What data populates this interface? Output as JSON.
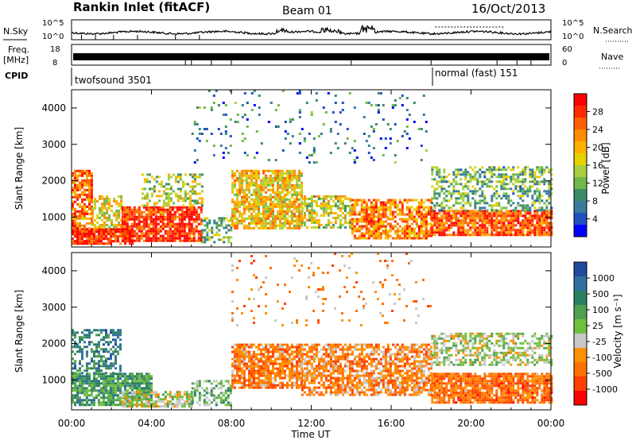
{
  "header": {
    "station": "Rankin Inlet (fitACF)",
    "beam": "Beam 01",
    "date": "16/Oct/2013"
  },
  "noise_panel": {
    "left_label": "N.Sky",
    "right_label": "N.Search",
    "left_ticks": [
      "10^5",
      "10^0"
    ],
    "right_ticks": [
      "10^5",
      "10^0"
    ]
  },
  "freq_panel": {
    "label_line1": "Freq.",
    "label_line2": "[MHz]",
    "left_ticks": [
      "18",
      "8"
    ],
    "right_ticks": [
      "60",
      "0"
    ],
    "right_label": "Nave"
  },
  "cpid": {
    "label": "CPID",
    "segments": [
      {
        "name": "twofsound 3501",
        "start_hour": 0,
        "end_hour": 18
      },
      {
        "name": "normal (fast) 151",
        "start_hour": 18,
        "end_hour": 24
      }
    ]
  },
  "x_axis": {
    "label": "Time UT",
    "tick_labels": [
      "00:00",
      "04:00",
      "08:00",
      "12:00",
      "16:00",
      "20:00",
      "00:00"
    ],
    "ticks_hours": [
      0,
      4,
      8,
      12,
      16,
      20,
      24
    ]
  },
  "chart_data": [
    {
      "type": "heatmap",
      "panel": "power",
      "ylabel": "Slant Range [km]",
      "y_ticks": [
        1000,
        2000,
        3000,
        4000
      ],
      "ylim": [
        180,
        4500
      ],
      "xlim": [
        0,
        24
      ],
      "colorbar_label": "Power [dB]",
      "colorbar_ticks": [
        "28",
        "24",
        "20",
        "16",
        "12",
        "8",
        "4"
      ],
      "colorbar_colors": [
        "#ff0000",
        "#ff2a00",
        "#ff6000",
        "#ff8c00",
        "#ffb000",
        "#e6d000",
        "#a8d040",
        "#6fb84a",
        "#3c8c6a",
        "#3a7aa0",
        "#2050c0",
        "#0000ff"
      ],
      "bands": [
        {
          "t0": 0.0,
          "t1": 3.0,
          "r0": 250,
          "r1": 700,
          "level": 0.95,
          "density": 0.9
        },
        {
          "t0": 0.0,
          "t1": 1.0,
          "r0": 700,
          "r1": 2300,
          "level": 0.8,
          "density": 0.75
        },
        {
          "t0": 1.0,
          "t1": 2.5,
          "r0": 700,
          "r1": 1600,
          "level": 0.55,
          "density": 0.6
        },
        {
          "t0": 2.5,
          "t1": 6.5,
          "r0": 350,
          "r1": 1300,
          "level": 0.9,
          "density": 0.85
        },
        {
          "t0": 3.5,
          "t1": 6.5,
          "r0": 1300,
          "r1": 2200,
          "level": 0.45,
          "density": 0.45
        },
        {
          "t0": 6.5,
          "t1": 8.0,
          "r0": 300,
          "r1": 1000,
          "level": 0.35,
          "density": 0.5
        },
        {
          "t0": 8.0,
          "t1": 11.5,
          "r0": 700,
          "r1": 2300,
          "level": 0.6,
          "density": 0.8
        },
        {
          "t0": 11.5,
          "t1": 14.0,
          "r0": 700,
          "r1": 1600,
          "level": 0.5,
          "density": 0.6
        },
        {
          "t0": 14.0,
          "t1": 18.0,
          "r0": 400,
          "r1": 1500,
          "level": 0.75,
          "density": 0.75
        },
        {
          "t0": 18.0,
          "t1": 24.0,
          "r0": 500,
          "r1": 1200,
          "level": 0.85,
          "density": 0.85
        },
        {
          "t0": 18.0,
          "t1": 24.0,
          "r0": 1200,
          "r1": 2400,
          "level": 0.35,
          "density": 0.5
        },
        {
          "t0": 6.0,
          "t1": 18.0,
          "r0": 2500,
          "r1": 4500,
          "level": 0.2,
          "density": 0.06
        }
      ]
    },
    {
      "type": "heatmap",
      "panel": "velocity",
      "ylabel": "Slant Range [km]",
      "y_ticks": [
        1000,
        2000,
        3000,
        4000
      ],
      "ylim": [
        180,
        4500
      ],
      "xlim": [
        0,
        24
      ],
      "colorbar_label": "Velocity [m s⁻¹]",
      "colorbar_ticks": [
        "1000",
        "500",
        "100",
        "25",
        "-25",
        "-100",
        "-500",
        "-1000"
      ],
      "colorbar_colors": [
        "#1f4aa0",
        "#3070a0",
        "#2a8060",
        "#50a050",
        "#70c040",
        "#c8c8c8",
        "#ff9000",
        "#ff7000",
        "#ff4000",
        "#ff0000"
      ],
      "bands": [
        {
          "t0": 0.0,
          "t1": 4.0,
          "r0": 300,
          "r1": 1200,
          "level": 0.3,
          "density": 0.85
        },
        {
          "t0": 2.5,
          "t1": 6.0,
          "r0": 300,
          "r1": 700,
          "level": 0.5,
          "density": 0.7
        },
        {
          "t0": 0.0,
          "t1": 2.5,
          "r0": 1200,
          "r1": 2400,
          "level": 0.2,
          "density": 0.5
        },
        {
          "t0": 6.0,
          "t1": 8.0,
          "r0": 300,
          "r1": 1000,
          "level": 0.4,
          "density": 0.5
        },
        {
          "t0": 8.0,
          "t1": 11.5,
          "r0": 800,
          "r1": 2000,
          "level": 0.75,
          "density": 0.8
        },
        {
          "t0": 11.5,
          "t1": 18.0,
          "r0": 600,
          "r1": 2000,
          "level": 0.72,
          "density": 0.7
        },
        {
          "t0": 18.0,
          "t1": 24.0,
          "r0": 400,
          "r1": 1200,
          "level": 0.78,
          "density": 0.85
        },
        {
          "t0": 18.0,
          "t1": 24.0,
          "r0": 1400,
          "r1": 2300,
          "level": 0.5,
          "density": 0.55
        },
        {
          "t0": 8.0,
          "t1": 18.0,
          "r0": 2500,
          "r1": 4500,
          "level": 0.7,
          "density": 0.05
        }
      ]
    }
  ]
}
